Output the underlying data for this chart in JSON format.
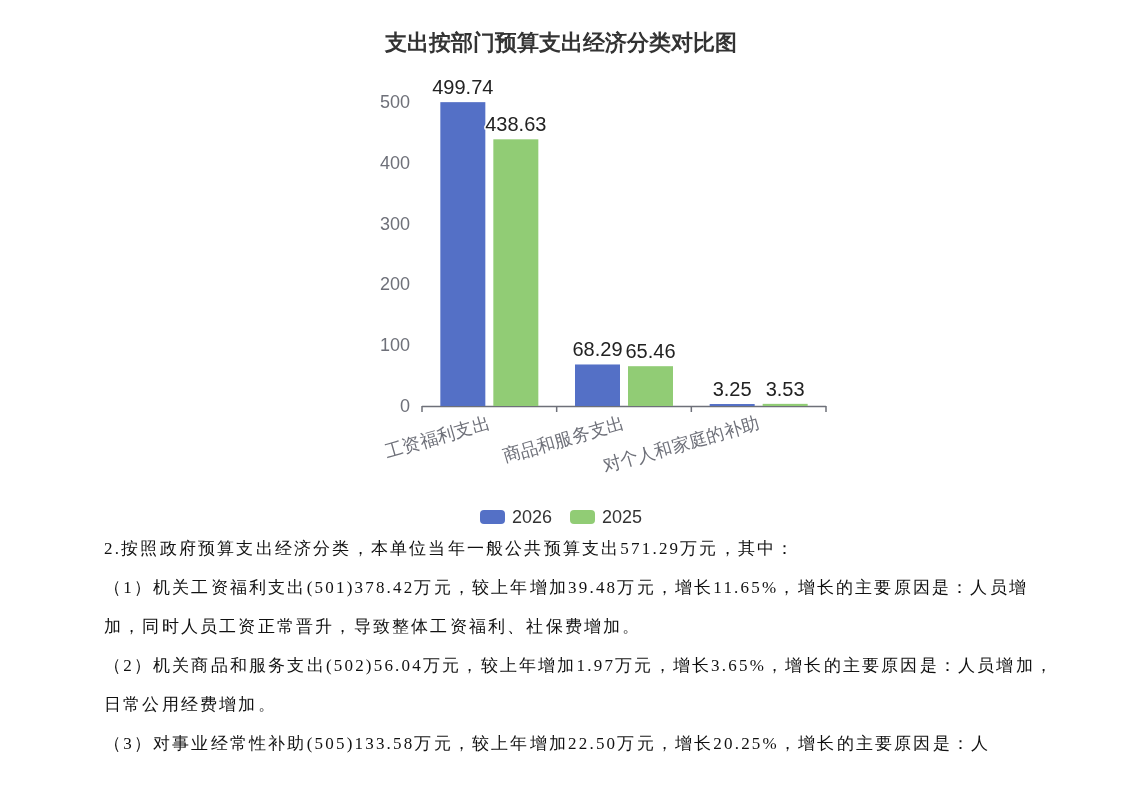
{
  "chart_data": {
    "type": "bar",
    "title": "支出按部门预算支出经济分类对比图",
    "categories": [
      "工资福利支出",
      "商品和服务支出",
      "对个人和家庭的补助"
    ],
    "series": [
      {
        "name": "2026",
        "color": "#5470c6",
        "values": [
          499.74,
          68.29,
          3.25
        ]
      },
      {
        "name": "2025",
        "color": "#91cc75",
        "values": [
          438.63,
          65.46,
          3.53
        ]
      }
    ],
    "ylim": [
      0,
      500
    ],
    "yticks": [
      0,
      100,
      200,
      300,
      400,
      500
    ],
    "legend": "bottom",
    "data_labels": true,
    "annotations": [
      "2.按照政府预算支出经济分类，本单位当年一般公共预算支出571.29万元，其中：",
      "（1）机关工资福利支出(501)378.42万元，较上年增加39.48万元，增长11.65%，增长的主要原因是：人员增加，同时人员工资正常晋升，导致整体工资福利、社保费增加。",
      "（2）机关商品和服务支出(502)56.04万元，较上年增加1.97万元，增长3.65%，增长的主要原因是：人员增加，日常公用经费增加。",
      "（3）对事业经常性补助(505)133.58万元，较上年增加22.50万元，增长20.25%，增长的主要原因是：人"
    ]
  }
}
